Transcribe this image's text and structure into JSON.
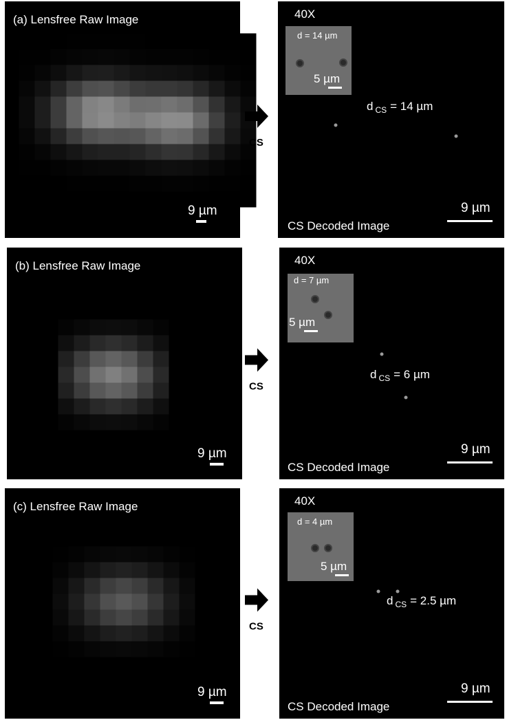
{
  "panels": [
    {
      "raw": {
        "label": "(a) Lensfree Raw Image",
        "scale": "9 µm"
      },
      "arrow": "CS",
      "decoded": {
        "inset": {
          "magnification": "40X",
          "d": "d = 14 µm",
          "scale": "5 µm"
        },
        "dcs_symbol": "d",
        "dcs_sub": "CS",
        "dcs_value": "= 14 µm",
        "caption": "CS Decoded Image",
        "scale": "9 µm"
      }
    },
    {
      "raw": {
        "label": "(b) Lensfree Raw Image",
        "scale": "9 µm"
      },
      "arrow": "CS",
      "decoded": {
        "inset": {
          "magnification": "40X",
          "d": "d = 7 µm",
          "scale": "5 µm"
        },
        "dcs_symbol": "d",
        "dcs_sub": "CS",
        "dcs_value": "= 6 µm",
        "caption": "CS Decoded Image",
        "scale": "9 µm"
      }
    },
    {
      "raw": {
        "label": "(c) Lensfree Raw Image",
        "scale": "9 µm"
      },
      "arrow": "CS",
      "decoded": {
        "inset": {
          "magnification": "40X",
          "d": "d = 4 µm",
          "scale": "5 µm"
        },
        "dcs_symbol": "d",
        "dcs_sub": "CS",
        "dcs_value": "= 2.5 µm",
        "caption": "CS Decoded Image",
        "scale": "9 µm"
      }
    }
  ]
}
